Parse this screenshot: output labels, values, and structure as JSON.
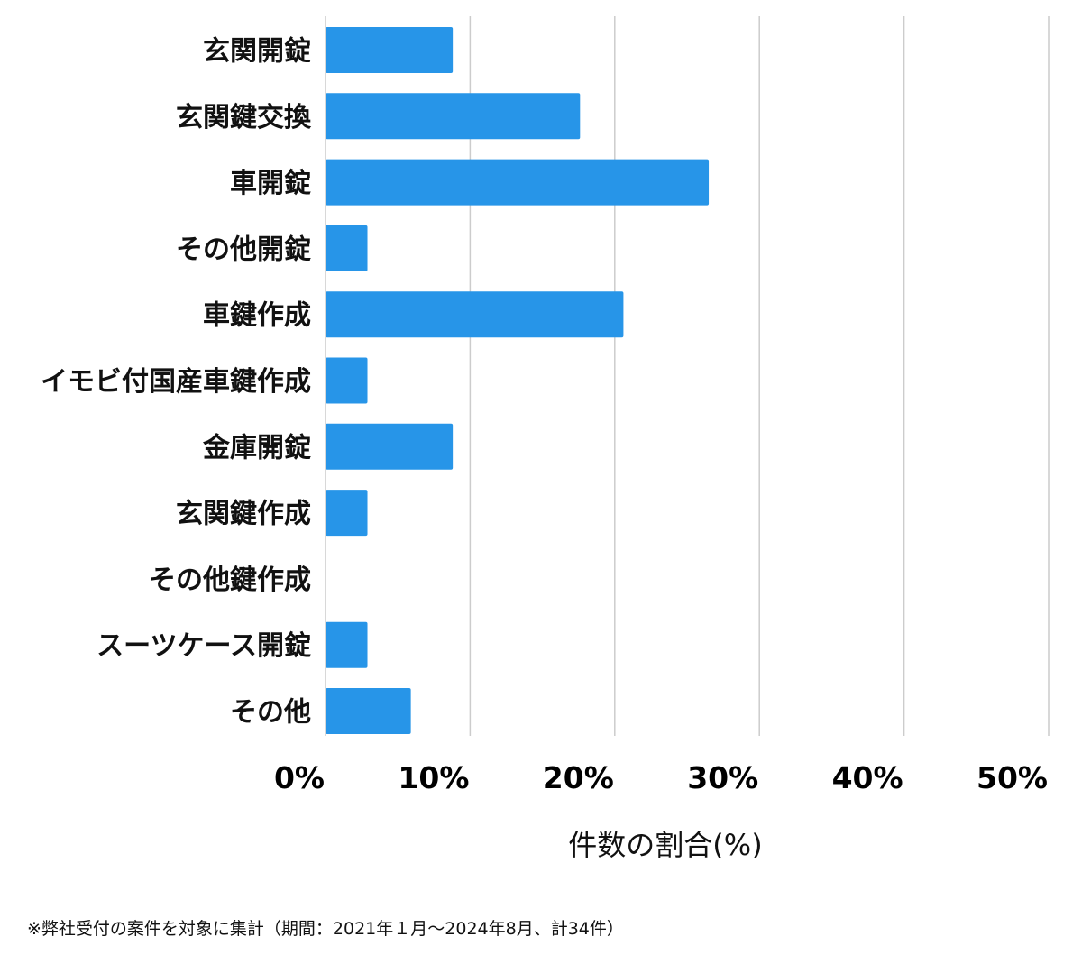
{
  "chart_data": {
    "type": "bar",
    "orientation": "horizontal",
    "categories": [
      "玄関開錠",
      "玄関鍵交換",
      "車開錠",
      "その他開錠",
      "車鍵作成",
      "イモビ付国産車鍵作成",
      "金庫開錠",
      "玄関鍵作成",
      "その他鍵作成",
      "スーツケース開錠",
      "その他"
    ],
    "values": [
      8.8,
      17.6,
      26.5,
      2.9,
      20.6,
      2.9,
      8.8,
      2.9,
      0,
      2.9,
      5.9
    ],
    "xlim": [
      0,
      50
    ],
    "xticks": [
      "0%",
      "10%",
      "20%",
      "30%",
      "40%",
      "50%"
    ],
    "xtick_values": [
      0,
      10,
      20,
      30,
      40,
      50
    ],
    "xlabel": "件数の割合(%)",
    "ylabel": "",
    "title": "",
    "grid": "vertical",
    "bar_color": "#2795e8"
  },
  "footnote": "※弊社受付の案件を対象に集計（期間：2021年１月〜2024年8月、計34件）"
}
